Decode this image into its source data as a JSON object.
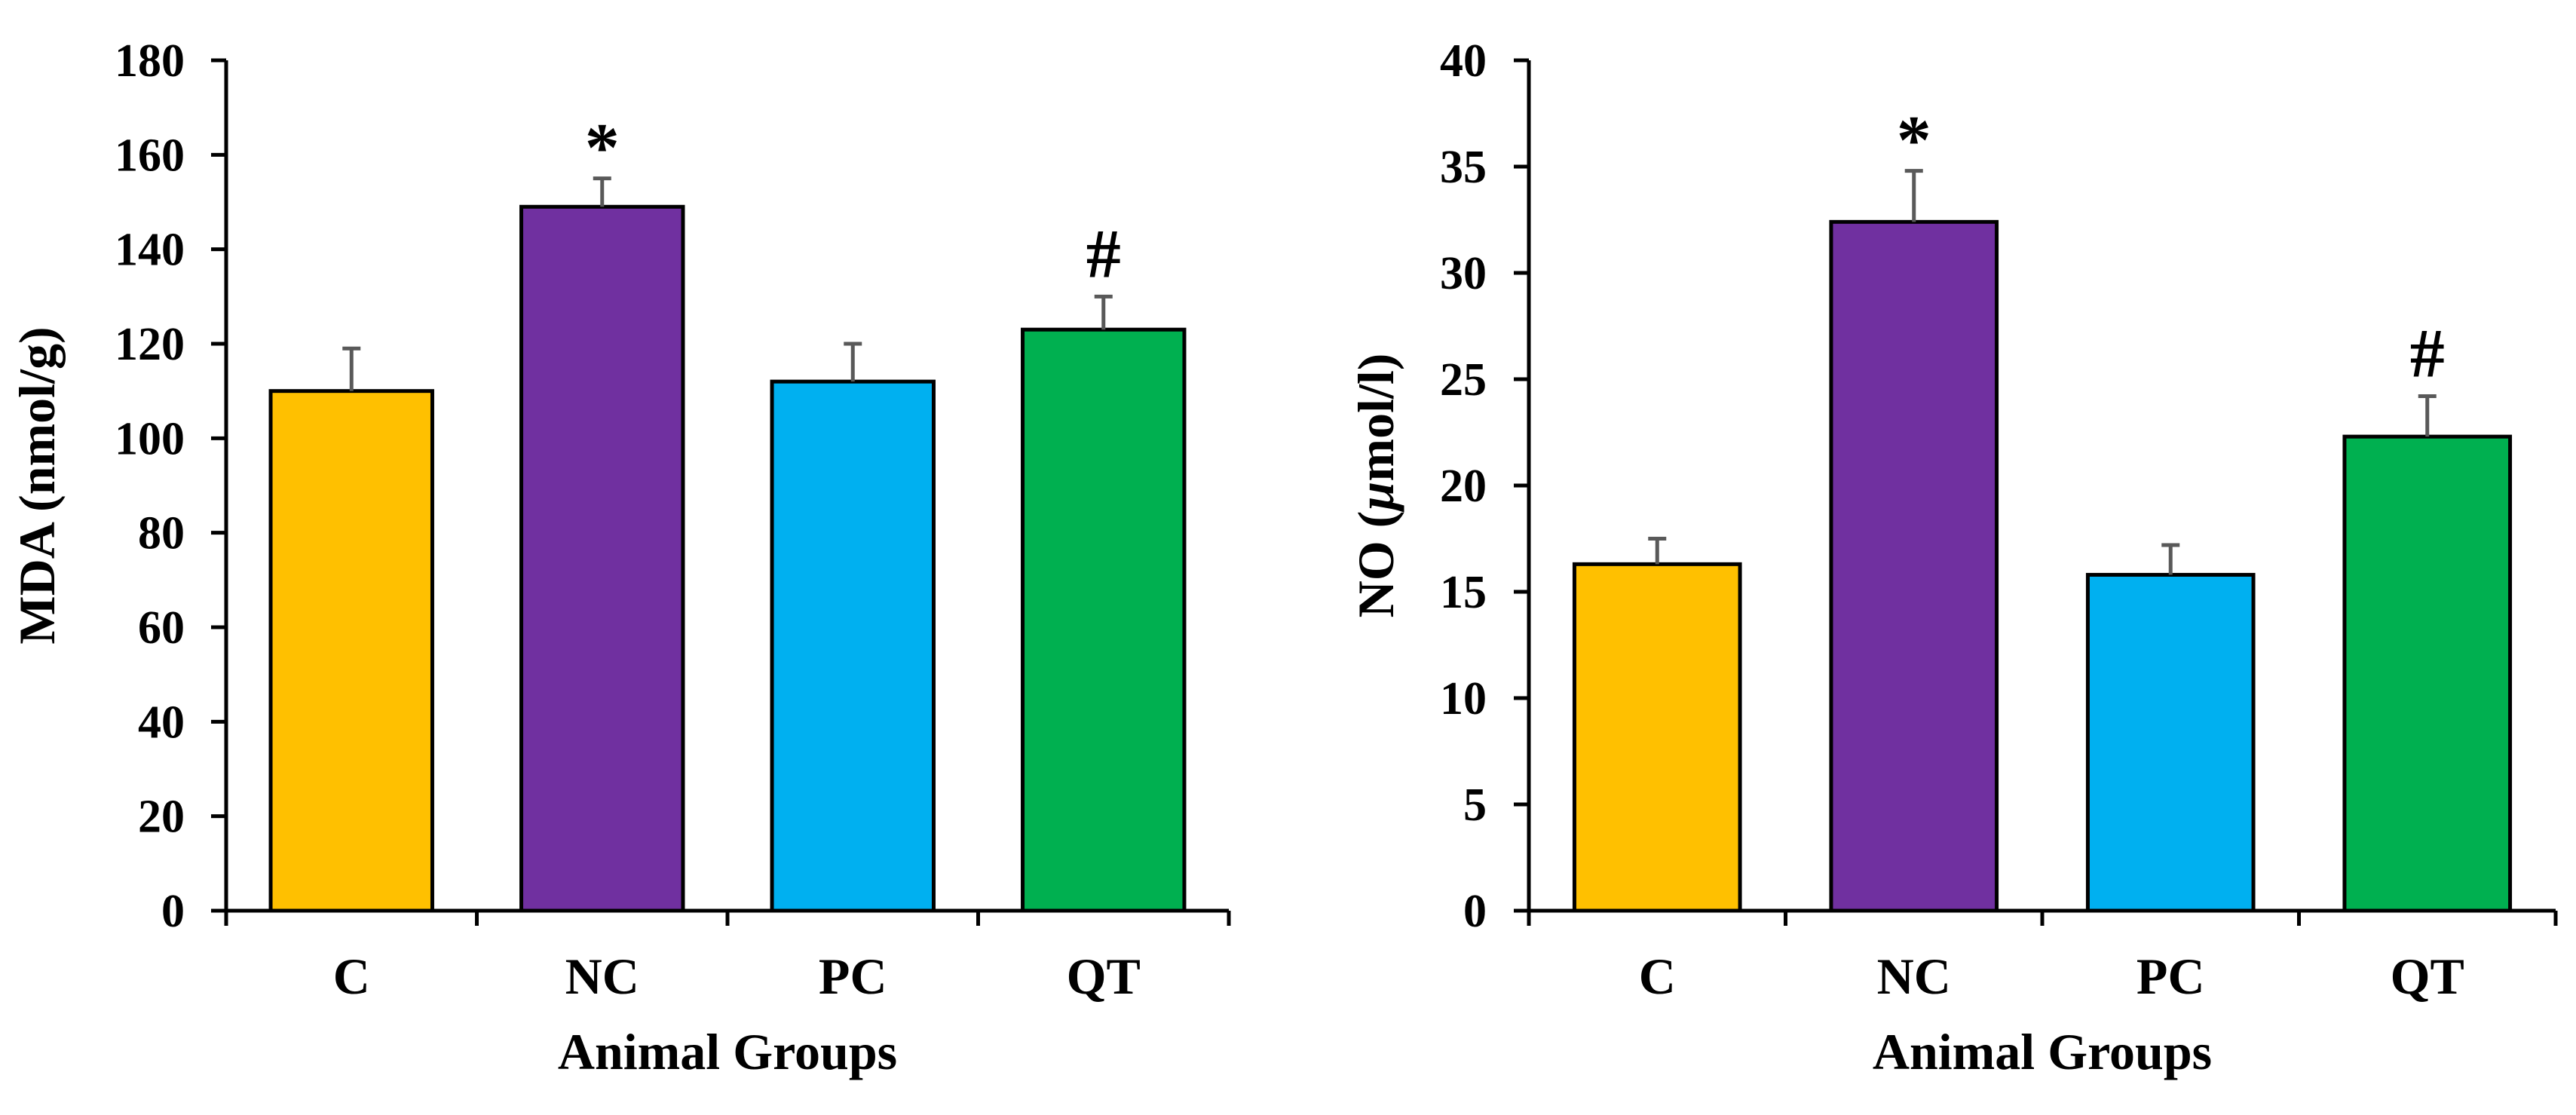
{
  "chart_data": [
    {
      "type": "bar",
      "id": "mda",
      "title": "",
      "xlabel": "Animal Groups",
      "ylabel": "MDA (nmol/g)",
      "ylabel_parts": [
        {
          "text": "MDA (nmol/g)",
          "italic": false
        }
      ],
      "categories": [
        "C",
        "NC",
        "PC",
        "QT"
      ],
      "values": [
        110,
        149,
        112,
        123
      ],
      "errors": [
        9,
        6,
        8,
        7
      ],
      "colors": [
        "#FFC000",
        "#7030A0",
        "#00B0F0",
        "#00B050"
      ],
      "annotations": [
        "",
        "*",
        "",
        "#"
      ],
      "ylim": [
        0,
        180
      ],
      "yticks": [
        0,
        20,
        40,
        60,
        80,
        100,
        120,
        140,
        160,
        180
      ],
      "grid": false,
      "legend": "none"
    },
    {
      "type": "bar",
      "id": "no",
      "title": "",
      "xlabel": "Animal Groups",
      "ylabel": "NO (µmol/l)",
      "ylabel_parts": [
        {
          "text": "NO (",
          "italic": false
        },
        {
          "text": "µ",
          "italic": true
        },
        {
          "text": "mol/l)",
          "italic": false
        }
      ],
      "categories": [
        "C",
        "NC",
        "PC",
        "QT"
      ],
      "values": [
        16.3,
        32.4,
        15.8,
        22.3
      ],
      "errors": [
        1.2,
        2.4,
        1.4,
        1.9
      ],
      "colors": [
        "#FFC000",
        "#7030A0",
        "#00B0F0",
        "#00B050"
      ],
      "annotations": [
        "",
        "*",
        "",
        "#"
      ],
      "ylim": [
        0,
        40
      ],
      "yticks": [
        0,
        5,
        10,
        15,
        20,
        25,
        30,
        35,
        40
      ],
      "grid": false,
      "legend": "none"
    }
  ]
}
